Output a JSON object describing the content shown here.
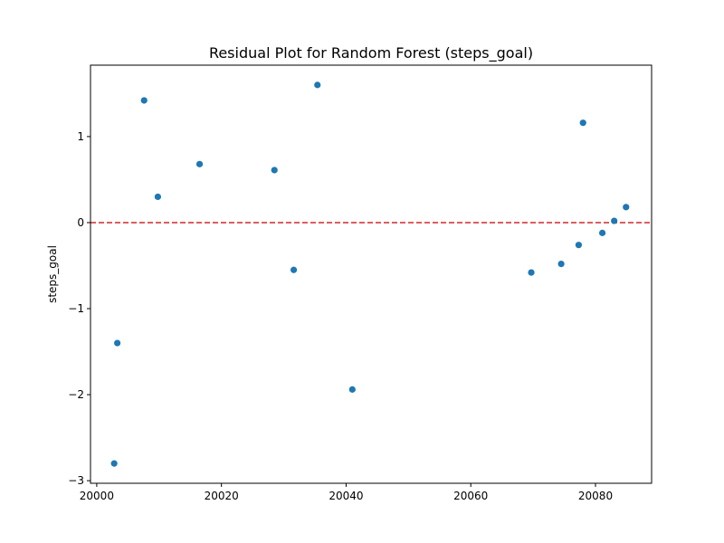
{
  "chart_data": {
    "type": "scatter",
    "title": "Residual Plot for Random Forest (steps_goal)",
    "xlabel": "",
    "ylabel": "steps_goal",
    "xlim": [
      19999,
      20089
    ],
    "ylim": [
      -3.03,
      1.83
    ],
    "xticks": [
      20000,
      20020,
      20040,
      20060,
      20080
    ],
    "yticks": [
      1,
      0,
      -1,
      -2,
      -3
    ],
    "ytick_labels": [
      "1",
      "0",
      "−1",
      "−2",
      "−3"
    ],
    "grid": false,
    "reference_line": {
      "y": 0,
      "color": "#d62728",
      "style": "dashed"
    },
    "marker_color": "#1f77b4",
    "points": [
      {
        "x": 20002.8,
        "y": -2.8
      },
      {
        "x": 20003.3,
        "y": -1.4
      },
      {
        "x": 20007.6,
        "y": 1.42
      },
      {
        "x": 20009.8,
        "y": 0.3
      },
      {
        "x": 20016.5,
        "y": 0.68
      },
      {
        "x": 20028.5,
        "y": 0.61
      },
      {
        "x": 20031.6,
        "y": -0.55
      },
      {
        "x": 20035.4,
        "y": 1.6
      },
      {
        "x": 20041.0,
        "y": -1.94
      },
      {
        "x": 20069.7,
        "y": -0.58
      },
      {
        "x": 20074.5,
        "y": -0.48
      },
      {
        "x": 20077.3,
        "y": -0.26
      },
      {
        "x": 20078.0,
        "y": 1.16
      },
      {
        "x": 20081.1,
        "y": -0.12
      },
      {
        "x": 20083.0,
        "y": 0.02
      },
      {
        "x": 20084.9,
        "y": 0.18
      }
    ]
  }
}
